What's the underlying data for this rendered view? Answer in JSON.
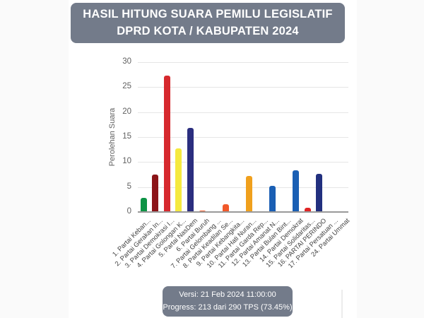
{
  "header": {
    "title_line1": "HASIL HITUNG SUARA PEMILU LEGISLATIF",
    "title_line2": "DPRD KOTA / KABUPATEN 2024"
  },
  "chart_data": {
    "type": "bar",
    "title": "",
    "xlabel": "",
    "ylabel": "Perolehan Suara",
    "ylim": [
      0,
      30
    ],
    "yticks": [
      0,
      5,
      10,
      15,
      20,
      25,
      30
    ],
    "grid": true,
    "legend": false,
    "categories": [
      "1. Partai Keban...",
      "2. Partai Gerakan In...",
      "3. Partai Demokrasi I...",
      "4. Partai Golongan K...",
      "5. Partai NasDem",
      "6. Partai Buruh",
      "7. Partai Gelombang ...",
      "8. Partai Keadilan Se...",
      "9. Partai Kebangkita...",
      "10. Partai Hati Nuran...",
      "11. Partai Garda Rep...",
      "12. Partai Amanat N...",
      "13. Partai Bulan Bint...",
      "14. Partai Demokrat",
      "15. Partai Solidaritas...",
      "16. PARTAI PERINDO",
      "17. Partai Persatuan ...",
      "24. Partai Ummat"
    ],
    "values": [
      2.8,
      7.5,
      27.3,
      12.7,
      16.9,
      0.2,
      0,
      1.6,
      0,
      7.2,
      0,
      5.3,
      0,
      8.3,
      0.8,
      7.7,
      0,
      0
    ],
    "bar_colors": [
      "#0d9345",
      "#8b1418",
      "#d6292e",
      "#f5e93f",
      "#2b2e7f",
      "#f1592a",
      null,
      "#f1592a",
      null,
      "#f0a01d",
      null,
      "#1a5fb4",
      null,
      "#1a5fb4",
      "#e02424",
      "#22307f",
      null,
      null
    ]
  },
  "footer": {
    "version_line": "Versi: 21 Feb 2024 11:00:00",
    "progress_line": "Progress: 213 dari 290 TPS (73.45%)"
  },
  "colors": {
    "panel": "#737b8a",
    "panel-text": "#ffffff",
    "axis-line": "#9a9a9a",
    "grid-line": "#e6e6e6",
    "tick-text": "#616161",
    "label-text": "#3f3f3f"
  }
}
